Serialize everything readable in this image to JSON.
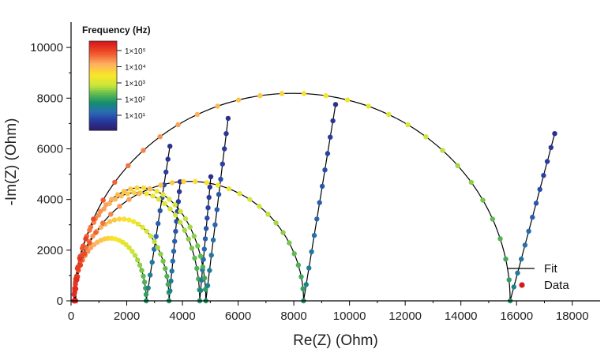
{
  "chart_data": {
    "type": "scatter",
    "xlabel": "Re(Z) (Ohm)",
    "ylabel": "-Im(Z) (Ohm)",
    "xlim": [
      0,
      19000
    ],
    "ylim": [
      0,
      11000
    ],
    "xticks": [
      0,
      2000,
      4000,
      6000,
      8000,
      10000,
      12000,
      14000,
      16000,
      18000
    ],
    "yticks": [
      0,
      2000,
      4000,
      6000,
      8000,
      10000
    ],
    "xtick_labels": [
      "0",
      "2000",
      "4000",
      "6000",
      "8000",
      "10000",
      "12000",
      "14000",
      "16000",
      "18000"
    ],
    "ytick_labels": [
      "0",
      "2000",
      "4000",
      "6000",
      "8000",
      "10000"
    ],
    "colorbar": {
      "title": "Frequency (Hz)",
      "labels": [
        "1×10⁵",
        "1×10⁴",
        "1×10³",
        "1×10²",
        "1×10¹"
      ],
      "colors": [
        "#d7191c",
        "#f46d43",
        "#fdae61",
        "#fee08b",
        "#d9ef8b",
        "#66bd63",
        "#1a9850",
        "#2c7bb6",
        "#253494",
        "#2d1e6b"
      ]
    },
    "legend": {
      "position": "bottom-right",
      "items": [
        {
          "label": "Fit",
          "kind": "line",
          "color": "#000000"
        },
        {
          "label": "Data",
          "kind": "point",
          "color": "#d7191c"
        }
      ]
    },
    "series": [
      {
        "R0": 100,
        "R": 2600,
        "k": 1.9,
        "tail_dx": 850,
        "tail_dy": 6100
      },
      {
        "R0": 120,
        "R": 3400,
        "k": 1.9,
        "tail_dx": 400,
        "tail_dy": 4700
      },
      {
        "R0": 120,
        "R": 4500,
        "k": 1.9,
        "tail_dx": 400,
        "tail_dy": 4900
      },
      {
        "R0": 140,
        "R": 4700,
        "k": 1.9,
        "tail_dx": 800,
        "tail_dy": 7200
      },
      {
        "R0": 150,
        "R": 8200,
        "k": 1.15,
        "tail_dx": 1150,
        "tail_dy": 7750
      },
      {
        "R0": 170,
        "R": 15600,
        "k": 1.05,
        "tail_dx": 1600,
        "tail_dy": 6600
      }
    ]
  }
}
